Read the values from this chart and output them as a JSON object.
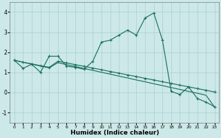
{
  "xlabel": "Humidex (Indice chaleur)",
  "bg_color": "#cce8e8",
  "grid_color": "#aacfcf",
  "line_color": "#1a6e60",
  "x": [
    0,
    1,
    2,
    3,
    4,
    5,
    6,
    7,
    8,
    9,
    10,
    11,
    12,
    13,
    14,
    15,
    16,
    17,
    18,
    19,
    20,
    21,
    22,
    23
  ],
  "line1_y": [
    1.6,
    1.2,
    1.4,
    1.0,
    1.8,
    1.8,
    1.3,
    1.25,
    1.15,
    1.55,
    2.5,
    2.6,
    2.85,
    3.1,
    2.85,
    3.7,
    3.95,
    2.6,
    0.05,
    -0.1,
    0.28,
    -0.3,
    -0.48,
    -0.72
  ],
  "line2_y": [
    1.6,
    1.5,
    1.42,
    1.33,
    1.25,
    1.55,
    1.47,
    1.38,
    1.3,
    1.21,
    1.13,
    1.04,
    0.96,
    0.87,
    0.79,
    0.7,
    0.62,
    0.53,
    0.45,
    0.36,
    0.28,
    0.19,
    0.11,
    0.02
  ],
  "line3_y": [
    1.6,
    1.5,
    1.41,
    1.31,
    1.22,
    1.48,
    1.38,
    1.29,
    1.19,
    1.1,
    1.0,
    0.91,
    0.81,
    0.72,
    0.62,
    0.53,
    0.43,
    0.34,
    0.24,
    0.15,
    0.05,
    -0.04,
    -0.14,
    -0.74
  ],
  "ylim": [
    -1.5,
    4.5
  ],
  "xlim": [
    -0.5,
    23.5
  ],
  "yticks": [
    -1,
    0,
    1,
    2,
    3,
    4
  ],
  "xticks": [
    0,
    1,
    2,
    3,
    4,
    5,
    6,
    7,
    8,
    9,
    10,
    11,
    12,
    13,
    14,
    15,
    16,
    17,
    18,
    19,
    20,
    21,
    22,
    23
  ]
}
